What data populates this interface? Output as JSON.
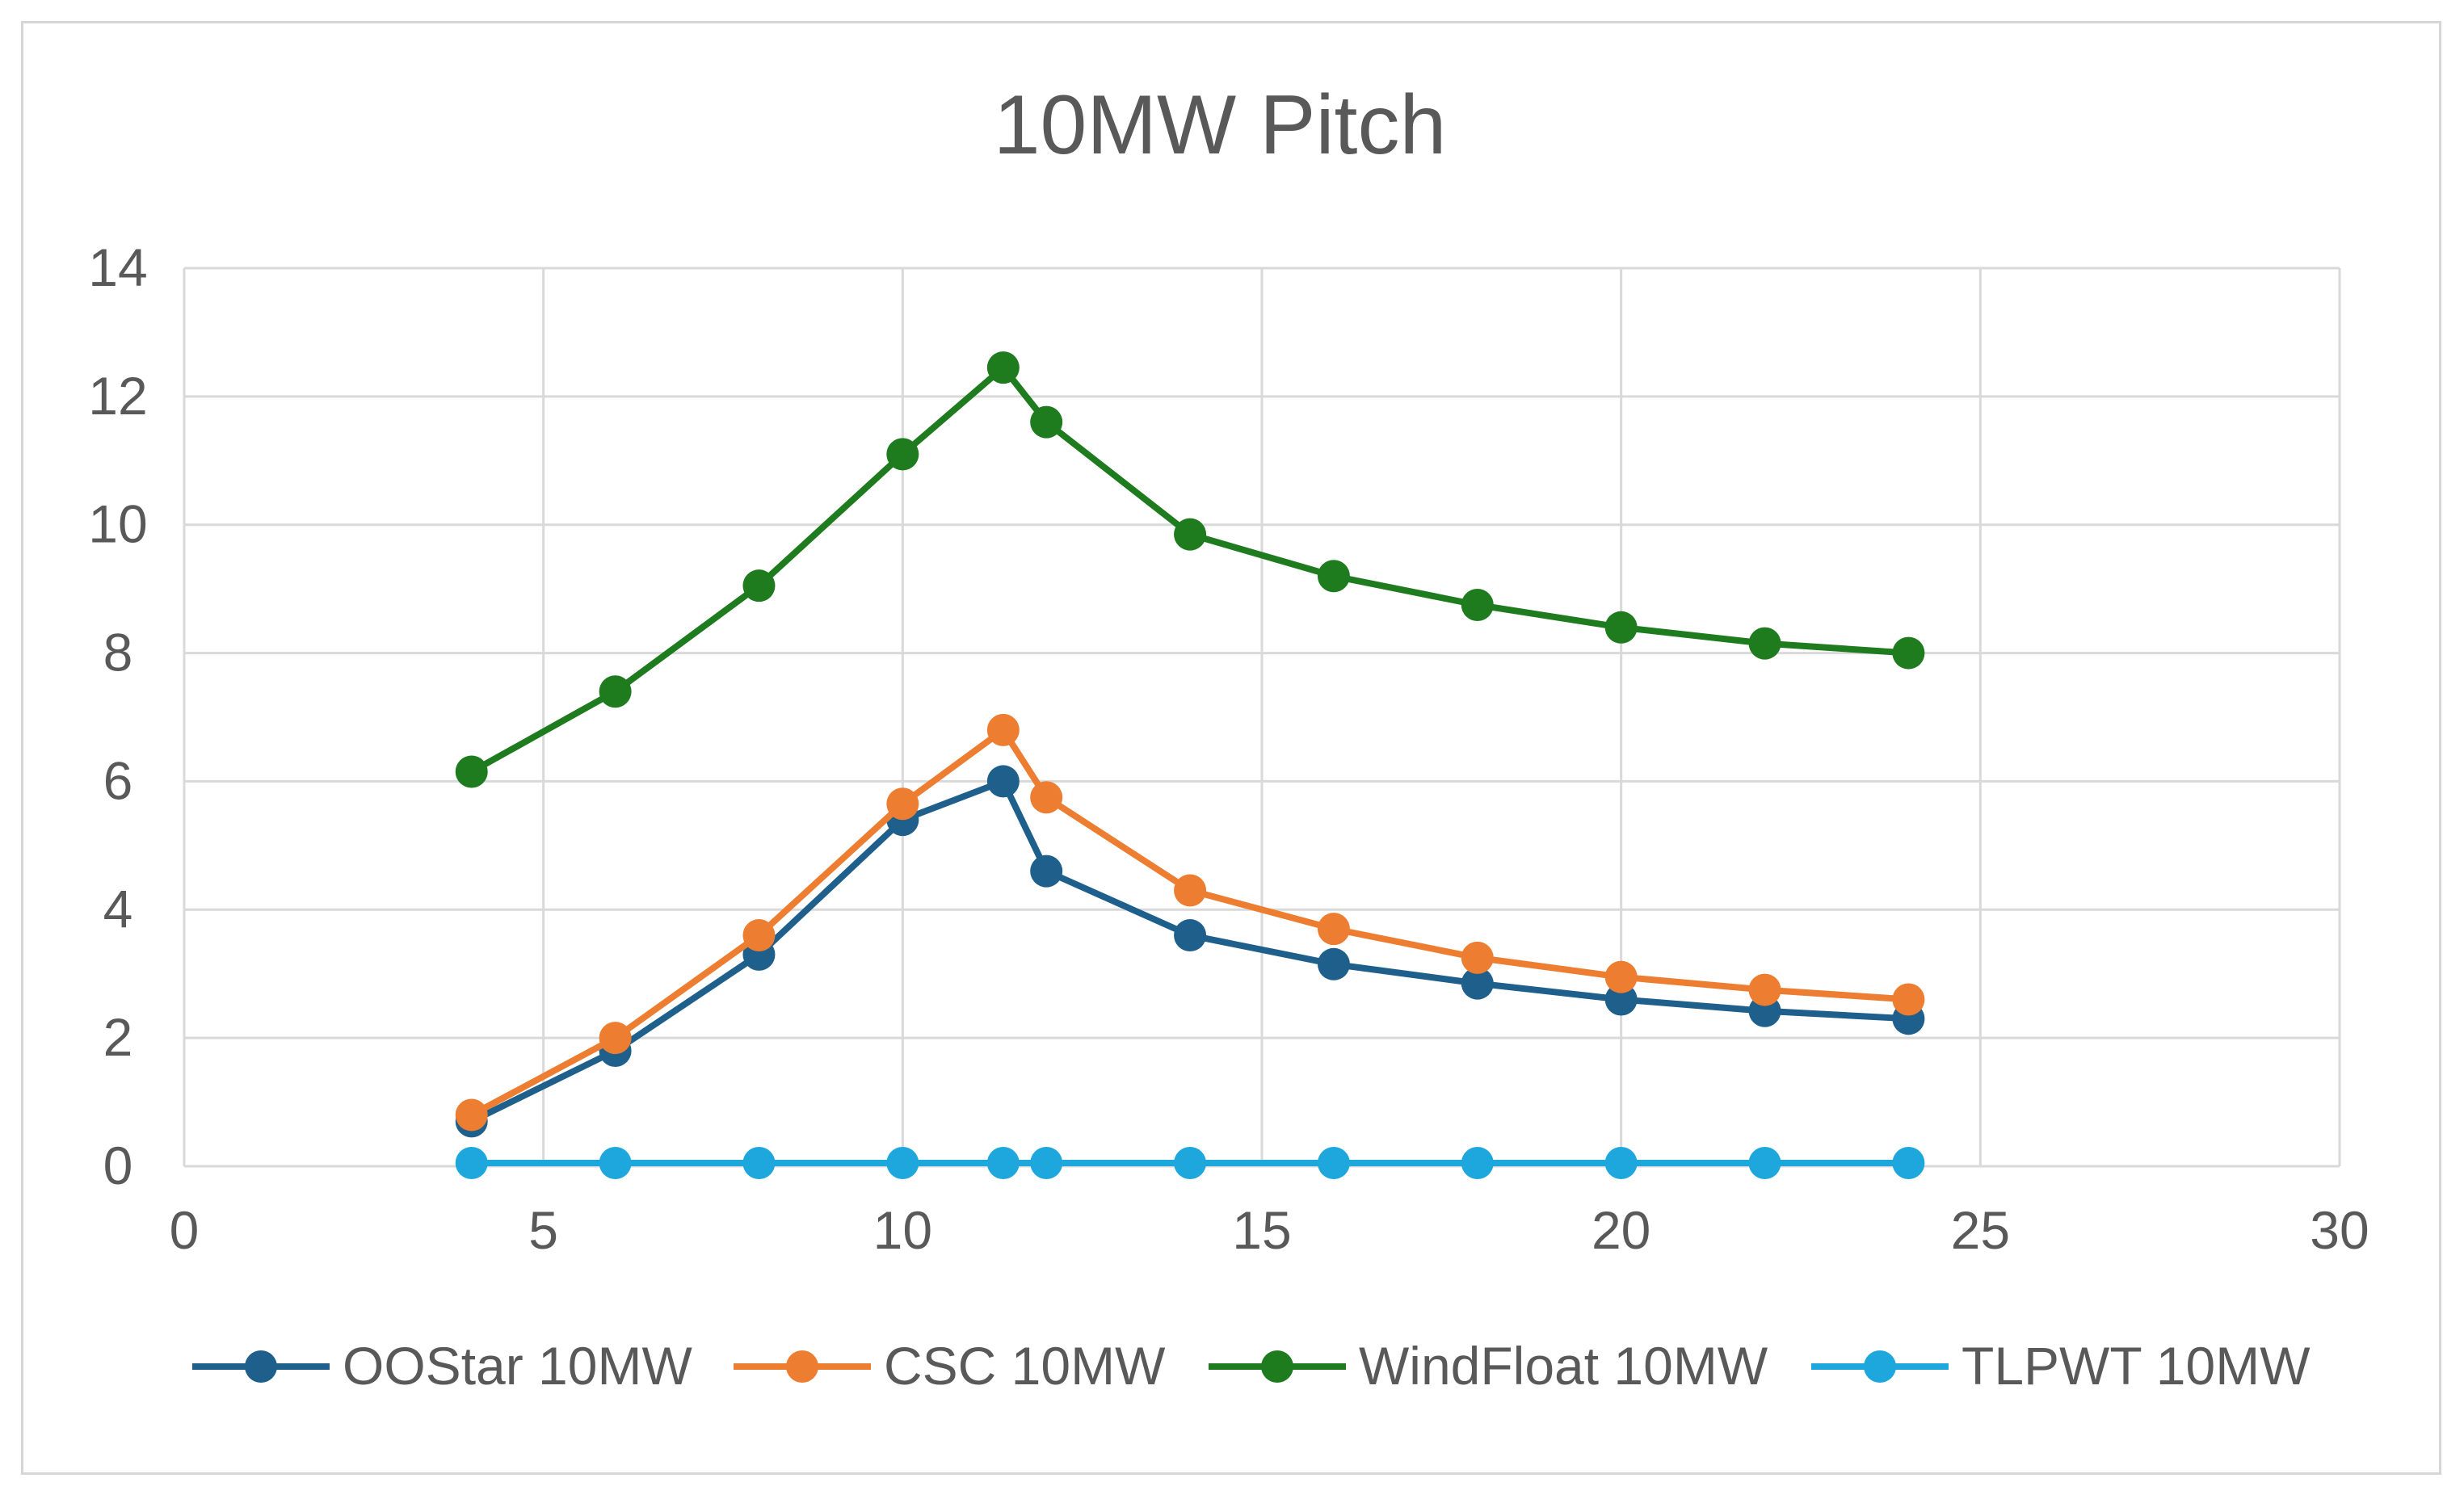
{
  "chart_data": {
    "type": "line",
    "title": "10MW Pitch",
    "xlabel": "",
    "ylabel": "",
    "xlim": [
      0,
      30
    ],
    "ylim": [
      0,
      14
    ],
    "xticks": [
      0,
      5,
      10,
      15,
      20,
      25,
      30
    ],
    "yticks": [
      0,
      2,
      4,
      6,
      8,
      10,
      12,
      14
    ],
    "grid": true,
    "legend_position": "bottom",
    "x": [
      4,
      6,
      8,
      10,
      11.4,
      12,
      14,
      16,
      18,
      20,
      22,
      24
    ],
    "series": [
      {
        "name": "OOStar 10MW",
        "color": "#1f5f8b",
        "values": [
          0.7,
          1.8,
          3.3,
          5.4,
          6.0,
          4.6,
          3.6,
          3.15,
          2.85,
          2.6,
          2.42,
          2.3
        ]
      },
      {
        "name": "CSC 10MW",
        "color": "#ed7d31",
        "values": [
          0.8,
          2.0,
          3.6,
          5.65,
          6.8,
          5.75,
          4.3,
          3.7,
          3.25,
          2.95,
          2.75,
          2.6
        ]
      },
      {
        "name": "WindFloat 10MW",
        "color": "#1e7b1e",
        "values": [
          6.15,
          7.4,
          9.05,
          11.1,
          12.45,
          11.6,
          9.85,
          9.2,
          8.75,
          8.4,
          8.15,
          8.0
        ]
      },
      {
        "name": "TLPWT 10MW",
        "color": "#1ea7dd",
        "values": [
          0.05,
          0.05,
          0.05,
          0.05,
          0.05,
          0.05,
          0.05,
          0.05,
          0.05,
          0.05,
          0.05,
          0.05
        ]
      }
    ]
  }
}
